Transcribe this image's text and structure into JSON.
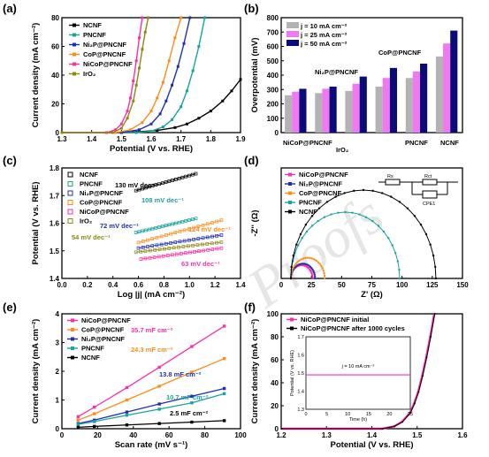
{
  "watermark": "Proofs",
  "colors": {
    "NCNF": "#000000",
    "PNCNF": "#1aa39b",
    "Ni2P": "#1f2fb0",
    "CoP": "#ff8c1a",
    "NiCoP": "#ff2da8",
    "IrO2": "#8a8a10",
    "bar10": "#b3b3b3",
    "bar25": "#f078f0",
    "bar50": "#0a0a7a"
  },
  "chart_data": [
    {
      "id": "a",
      "panel_label": "(a)",
      "type": "line",
      "xlabel": "Potential (V vs. RHE)",
      "ylabel": "Current density (mA cm⁻²)",
      "xlim": [
        1.3,
        1.9
      ],
      "ylim": [
        0,
        80
      ],
      "xticks": [
        "1.3",
        "1.4",
        "1.5",
        "1.6",
        "1.7",
        "1.8",
        "1.9"
      ],
      "yticks": [
        "0",
        "20",
        "40",
        "60",
        "80"
      ],
      "legend": [
        "NCNF",
        "PNCNF",
        "Ni₂P@PNCNF",
        "CoP@PNCNF",
        "NiCoP@PNCNF",
        "IrO₂"
      ],
      "series": [
        {
          "name": "NCNF",
          "color_key": "NCNF",
          "x": [
            1.3,
            1.45,
            1.55,
            1.62,
            1.68,
            1.72,
            1.76,
            1.8,
            1.84,
            1.87,
            1.9
          ],
          "y": [
            0,
            0,
            0.5,
            1.5,
            3.5,
            6,
            10,
            15,
            22,
            29,
            37
          ]
        },
        {
          "name": "PNCNF",
          "color_key": "PNCNF",
          "x": [
            1.3,
            1.55,
            1.6,
            1.64,
            1.67,
            1.7,
            1.72,
            1.74,
            1.76,
            1.78
          ],
          "y": [
            0,
            0,
            1,
            4,
            9,
            18,
            29,
            43,
            60,
            80
          ]
        },
        {
          "name": "Ni₂P@PNCNF",
          "color_key": "Ni2P",
          "x": [
            1.3,
            1.5,
            1.56,
            1.6,
            1.63,
            1.65,
            1.67,
            1.69,
            1.71,
            1.73
          ],
          "y": [
            0,
            0,
            2,
            6,
            13,
            22,
            33,
            46,
            62,
            80
          ]
        },
        {
          "name": "CoP@PNCNF",
          "color_key": "CoP",
          "x": [
            1.3,
            1.48,
            1.53,
            1.57,
            1.6,
            1.62,
            1.64,
            1.66,
            1.68,
            1.7
          ],
          "y": [
            0,
            0,
            2,
            7,
            15,
            24,
            35,
            50,
            66,
            80
          ]
        },
        {
          "name": "NiCoP@PNCNF",
          "color_key": "NiCoP",
          "x": [
            1.3,
            1.45,
            1.48,
            1.5,
            1.52,
            1.53,
            1.54,
            1.55,
            1.56,
            1.57
          ],
          "y": [
            0,
            0,
            2,
            6,
            15,
            24,
            36,
            50,
            66,
            80
          ]
        },
        {
          "name": "IrO₂",
          "color_key": "IrO2",
          "x": [
            1.3,
            1.47,
            1.5,
            1.52,
            1.54,
            1.55,
            1.56,
            1.57,
            1.58,
            1.59
          ],
          "y": [
            0,
            0,
            3,
            10,
            22,
            33,
            45,
            58,
            70,
            80
          ]
        }
      ]
    },
    {
      "id": "b",
      "panel_label": "(b)",
      "type": "bar",
      "ylabel": "Overpotential (mV)",
      "ylim": [
        0,
        800
      ],
      "yticks": [
        "0",
        "100",
        "200",
        "300",
        "400",
        "500",
        "600",
        "700",
        "800"
      ],
      "legend": [
        "j = 10 mA cm⁻²",
        "j = 25 mA cm⁻²",
        "j = 50 mA cm⁻²"
      ],
      "categories": [
        "NiCoP@PNCNF",
        "Ni₂P@PNCNF",
        "IrO₂",
        "CoP@PNCNF",
        "PNCNF",
        "NCNF"
      ],
      "series": [
        {
          "name": "j = 10 mA cm⁻²",
          "color_key": "bar10",
          "values": [
            260,
            275,
            290,
            320,
            380,
            530
          ]
        },
        {
          "name": "j = 25 mA cm⁻²",
          "color_key": "bar25",
          "values": [
            285,
            305,
            340,
            380,
            425,
            620
          ]
        },
        {
          "name": "j = 50 mA cm⁻²",
          "color_key": "bar50",
          "values": [
            305,
            320,
            390,
            450,
            480,
            710
          ]
        }
      ],
      "annotations": [
        "NiCoP@PNCNF",
        "Ni₂P@PNCNF",
        "IrO₂",
        "CoP@PNCNF",
        "PNCNF",
        "NCNF"
      ]
    },
    {
      "id": "c",
      "panel_label": "(c)",
      "type": "scatter",
      "xlabel": "Log |j| (mA cm⁻²)",
      "ylabel": "Potential (V vs. RHE)",
      "xlim": [
        0.0,
        1.4
      ],
      "ylim": [
        1.4,
        1.8
      ],
      "xticks": [
        "0.0",
        "0.2",
        "0.4",
        "0.6",
        "0.8",
        "1.0",
        "1.2",
        "1.4"
      ],
      "yticks": [
        "1.4",
        "1.5",
        "1.6",
        "1.7",
        "1.8"
      ],
      "legend": [
        "NCNF",
        "PNCNF",
        "Ni₂P@PNCNF",
        "CoP@PNCNF",
        "NiCoP@PNCNF",
        "IrO₂"
      ],
      "series": [
        {
          "name": "NCNF",
          "color_key": "NCNF",
          "x_range": [
            0.58,
            1.05
          ],
          "y_start": 1.718,
          "slope_mV_dec": 130,
          "label": "130 mV dec⁻¹"
        },
        {
          "name": "PNCNF",
          "color_key": "PNCNF",
          "x_range": [
            0.58,
            1.05
          ],
          "y_start": 1.566,
          "slope_mV_dec": 108,
          "label": "108 mV dec⁻¹"
        },
        {
          "name": "Ni₂P@PNCNF",
          "color_key": "Ni2P",
          "x_range": [
            0.6,
            1.25
          ],
          "y_start": 1.51,
          "slope_mV_dec": 72,
          "label": "72 mV dec⁻¹"
        },
        {
          "name": "CoP@PNCNF",
          "color_key": "CoP",
          "x_range": [
            0.6,
            1.25
          ],
          "y_start": 1.53,
          "slope_mV_dec": 124,
          "label": "124 mV dec⁻¹"
        },
        {
          "name": "NiCoP@PNCNF",
          "color_key": "NiCoP",
          "x_range": [
            0.62,
            1.25
          ],
          "y_start": 1.47,
          "slope_mV_dec": 63,
          "label": "63 mV dec⁻¹"
        },
        {
          "name": "IrO₂",
          "color_key": "IrO2",
          "x_range": [
            0.58,
            1.25
          ],
          "y_start": 1.495,
          "slope_mV_dec": 54,
          "label": "54 mV dec⁻¹"
        }
      ]
    },
    {
      "id": "d",
      "panel_label": "(d)",
      "type": "line",
      "xlabel": "Z' (Ω)",
      "ylabel": "-Z'' (Ω)",
      "xlim": [
        0,
        150
      ],
      "ylim": [
        0,
        75
      ],
      "xticks": [
        "0",
        "25",
        "50",
        "75",
        "100",
        "125",
        "150"
      ],
      "yticks": [],
      "legend": [
        "NiCoP@PNCNF",
        "Ni₂P@PNCNF",
        "CoP@PNCNF",
        "PNCNF",
        "NCNF"
      ],
      "circuit_labels": [
        "Rs",
        "Rct",
        "CPE1"
      ],
      "series": [
        {
          "name": "NiCoP@PNCNF",
          "color_key": "NiCoP",
          "semicircle": [
            8,
            26
          ]
        },
        {
          "name": "Ni₂P@PNCNF",
          "color_key": "Ni2P",
          "semicircle": [
            8,
            28
          ]
        },
        {
          "name": "CoP@PNCNF",
          "color_key": "CoP",
          "semicircle": [
            8,
            36
          ]
        },
        {
          "name": "PNCNF",
          "color_key": "PNCNF",
          "semicircle": [
            8,
            98
          ]
        },
        {
          "name": "NCNF",
          "color_key": "NCNF",
          "semicircle": [
            8,
            128
          ]
        }
      ]
    },
    {
      "id": "e",
      "panel_label": "(e)",
      "type": "line",
      "xlabel": "Scan rate (mV s⁻¹)",
      "ylabel": "Current density (mA cm⁻²)",
      "xlim": [
        0,
        110
      ],
      "ylim": [
        0,
        4
      ],
      "xticks": [
        "0",
        "20",
        "40",
        "60",
        "80",
        "100"
      ],
      "yticks": [
        "0",
        "1",
        "2",
        "3",
        "4"
      ],
      "legend": [
        "NiCoP@PNCNF",
        "CoP@PNCNF",
        "Ni₂P@PNCNF",
        "PNCNF",
        "NCNF"
      ],
      "series": [
        {
          "name": "NiCoP@PNCNF",
          "color_key": "NiCoP",
          "x": [
            10,
            20,
            40,
            60,
            80,
            100
          ],
          "y": [
            0.42,
            0.75,
            1.43,
            2.14,
            2.86,
            3.57
          ],
          "label": "35.7 mF cm⁻²"
        },
        {
          "name": "CoP@PNCNF",
          "color_key": "CoP",
          "x": [
            10,
            20,
            40,
            60,
            80,
            100
          ],
          "y": [
            0.3,
            0.52,
            1.0,
            1.48,
            1.97,
            2.44
          ],
          "label": "24.3 mF cm⁻²"
        },
        {
          "name": "Ni₂P@PNCNF",
          "color_key": "Ni2P",
          "x": [
            10,
            20,
            40,
            60,
            80,
            100
          ],
          "y": [
            0.18,
            0.3,
            0.58,
            0.86,
            1.13,
            1.4
          ],
          "label": "13.8 mF cm⁻²"
        },
        {
          "name": "PNCNF",
          "color_key": "PNCNF",
          "x": [
            10,
            20,
            40,
            60,
            80,
            100
          ],
          "y": [
            0.15,
            0.25,
            0.47,
            0.68,
            0.9,
            1.22
          ],
          "label": "10.7 mF cm⁻²"
        },
        {
          "name": "NCNF",
          "color_key": "NCNF",
          "x": [
            10,
            20,
            40,
            60,
            80,
            100
          ],
          "y": [
            0.05,
            0.08,
            0.13,
            0.18,
            0.23,
            0.28
          ],
          "label": "2.5 mF cm⁻²"
        }
      ]
    },
    {
      "id": "f",
      "panel_label": "(f)",
      "type": "line",
      "xlabel": "Potential (V vs. RHE)",
      "ylabel": "Current density (mA cm⁻²)",
      "xlim": [
        1.2,
        1.65
      ],
      "ylim": [
        0,
        100
      ],
      "xticks": [
        "1.2",
        "1.3",
        "1.4",
        "1.5",
        "1.6"
      ],
      "yticks": [
        "0",
        "20",
        "40",
        "60",
        "80",
        "100"
      ],
      "legend": [
        "NiCoP@PNCNF initial",
        "NiCoP@PNCNF after 1000 cycles"
      ],
      "series": [
        {
          "name": "NiCoP@PNCNF initial",
          "color_key": "NiCoP",
          "x": [
            1.2,
            1.45,
            1.48,
            1.5,
            1.52,
            1.53,
            1.54,
            1.55,
            1.56,
            1.57,
            1.58
          ],
          "y": [
            0,
            0,
            2,
            6,
            14,
            22,
            32,
            46,
            62,
            80,
            100
          ]
        },
        {
          "name": "NiCoP@PNCNF after 1000 cycles",
          "color_key": "NCNF",
          "x": [
            1.2,
            1.45,
            1.48,
            1.5,
            1.52,
            1.53,
            1.54,
            1.55,
            1.56,
            1.57,
            1.58
          ],
          "y": [
            0,
            0,
            2,
            6,
            14,
            22,
            32,
            46,
            62,
            80,
            100
          ]
        }
      ],
      "inset": {
        "ylabel": "Potential (V vs. RHE)",
        "xlabel": "Time (h)",
        "xlim": [
          0,
          25
        ],
        "ylim": [
          1.3,
          1.7
        ],
        "xticks": [
          "0",
          "5",
          "10",
          "15",
          "20",
          "25"
        ],
        "yticks": [
          "1.3",
          "1.4",
          "1.5",
          "1.6",
          "1.7"
        ],
        "label": "j = 10 mA cm⁻²",
        "value": 1.49
      }
    }
  ]
}
